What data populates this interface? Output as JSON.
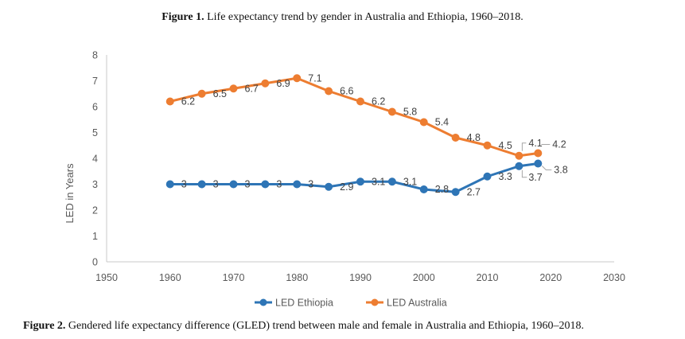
{
  "captions": {
    "figure1": {
      "label": "Figure 1.",
      "text": "Life expectancy trend by gender in Australia and Ethiopia, 1960–2018."
    },
    "figure2": {
      "label": "Figure 2.",
      "text": "Gendered life expectancy difference (GLED) trend between male and female in Australia and Ethiopia, 1960–2018."
    }
  },
  "chart_data": {
    "type": "line",
    "title": "",
    "xlabel": "",
    "ylabel": "LED in Years",
    "xlim": [
      1950,
      2030
    ],
    "ylim": [
      0,
      8
    ],
    "xticks": [
      1950,
      1960,
      1970,
      1980,
      1990,
      2000,
      2010,
      2020,
      2030
    ],
    "yticks": [
      0,
      1,
      2,
      3,
      4,
      5,
      6,
      7,
      8
    ],
    "grid": false,
    "legend_position": "bottom",
    "series": [
      {
        "name": "LED Ethiopia",
        "color": "#2e75b6",
        "x": [
          1960,
          1965,
          1970,
          1975,
          1980,
          1985,
          1990,
          1995,
          2000,
          2005,
          2010,
          2015,
          2018
        ],
        "y": [
          3,
          3,
          3,
          3,
          3,
          2.9,
          3.1,
          3.1,
          2.8,
          2.7,
          3.3,
          3.7,
          3.8
        ]
      },
      {
        "name": "LED Australia",
        "color": "#ed7d31",
        "x": [
          1960,
          1965,
          1970,
          1975,
          1980,
          1985,
          1990,
          1995,
          2000,
          2005,
          2010,
          2015,
          2018
        ],
        "y": [
          6.2,
          6.5,
          6.7,
          6.9,
          7.1,
          6.6,
          6.2,
          5.8,
          5.4,
          4.8,
          4.5,
          4.1,
          4.2
        ]
      }
    ]
  }
}
